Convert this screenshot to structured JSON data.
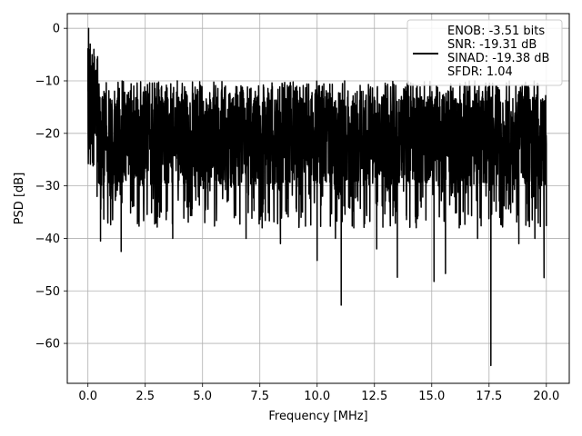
{
  "chart_data": {
    "type": "line",
    "title": "",
    "xlabel": "Frequency [MHz]",
    "ylabel": "PSD [dB]",
    "xlim": [
      -0.9,
      21.0
    ],
    "ylim": [
      -67.6,
      2.8
    ],
    "xticks": [
      0.0,
      2.5,
      5.0,
      7.5,
      10.0,
      12.5,
      15.0,
      17.5,
      20.0
    ],
    "xtick_labels": [
      "0.0",
      "2.5",
      "5.0",
      "7.5",
      "10.0",
      "12.5",
      "15.0",
      "17.5",
      "20.0"
    ],
    "yticks": [
      0,
      -10,
      -20,
      -30,
      -40,
      -50,
      -60
    ],
    "ytick_labels": [
      "0",
      "−10",
      "−20",
      "−30",
      "−40",
      "−50",
      "−60"
    ],
    "grid": true,
    "legend_position": "top-right",
    "series": [
      {
        "legend_lines": [
          "ENOB: -3.51 bits",
          "SNR: -19.31 dB",
          "SINAD: -19.38 dB",
          "SFDR: 1.04"
        ],
        "color": "#000000",
        "points": [
          [
            0.0,
            -12
          ],
          [
            0.03,
            0.0
          ],
          [
            0.06,
            -18
          ],
          [
            0.1,
            -3
          ],
          [
            0.14,
            -22
          ],
          [
            0.18,
            -5
          ],
          [
            0.22,
            -25
          ],
          [
            0.26,
            -4
          ],
          [
            0.3,
            -20
          ],
          [
            0.35,
            -8
          ],
          [
            0.4,
            -32
          ],
          [
            0.45,
            -13
          ],
          [
            0.5,
            -26
          ],
          [
            0.55,
            -40.5
          ],
          [
            0.7,
            -12
          ],
          [
            1.0,
            -25
          ],
          [
            1.3,
            -30
          ],
          [
            1.5,
            -14
          ],
          [
            1.8,
            -26
          ],
          [
            1.45,
            -42.5
          ],
          [
            2.0,
            -11
          ],
          [
            2.4,
            -30
          ],
          [
            2.9,
            -12
          ],
          [
            3.2,
            -35
          ],
          [
            3.7,
            -40
          ],
          [
            3.9,
            -10
          ],
          [
            4.4,
            -34
          ],
          [
            4.8,
            -12
          ],
          [
            5.1,
            -37
          ],
          [
            5.7,
            -29
          ],
          [
            6.0,
            -11
          ],
          [
            6.4,
            -33
          ],
          [
            6.9,
            -40
          ],
          [
            7.3,
            -12
          ],
          [
            7.6,
            -38
          ],
          [
            8.4,
            -41
          ],
          [
            8.8,
            -11
          ],
          [
            9.3,
            -36
          ],
          [
            10.0,
            -44.2
          ],
          [
            10.4,
            -12
          ],
          [
            10.8,
            -40
          ],
          [
            11.05,
            -52.7
          ],
          [
            11.2,
            -10
          ],
          [
            11.6,
            -38
          ],
          [
            12.0,
            -12
          ],
          [
            12.6,
            -42
          ],
          [
            13.0,
            -11
          ],
          [
            13.5,
            -47.4
          ],
          [
            13.9,
            -12
          ],
          [
            14.3,
            -37
          ],
          [
            15.1,
            -48.2
          ],
          [
            15.5,
            -13
          ],
          [
            15.6,
            -46.7
          ],
          [
            16.2,
            -38
          ],
          [
            16.6,
            -12
          ],
          [
            17.0,
            -40
          ],
          [
            17.58,
            -64.2
          ],
          [
            17.8,
            -11
          ],
          [
            18.1,
            -36
          ],
          [
            18.8,
            -41
          ],
          [
            19.2,
            -12
          ],
          [
            19.5,
            -40
          ],
          [
            19.9,
            -47.5
          ],
          [
            20.0,
            -22
          ]
        ]
      }
    ]
  }
}
